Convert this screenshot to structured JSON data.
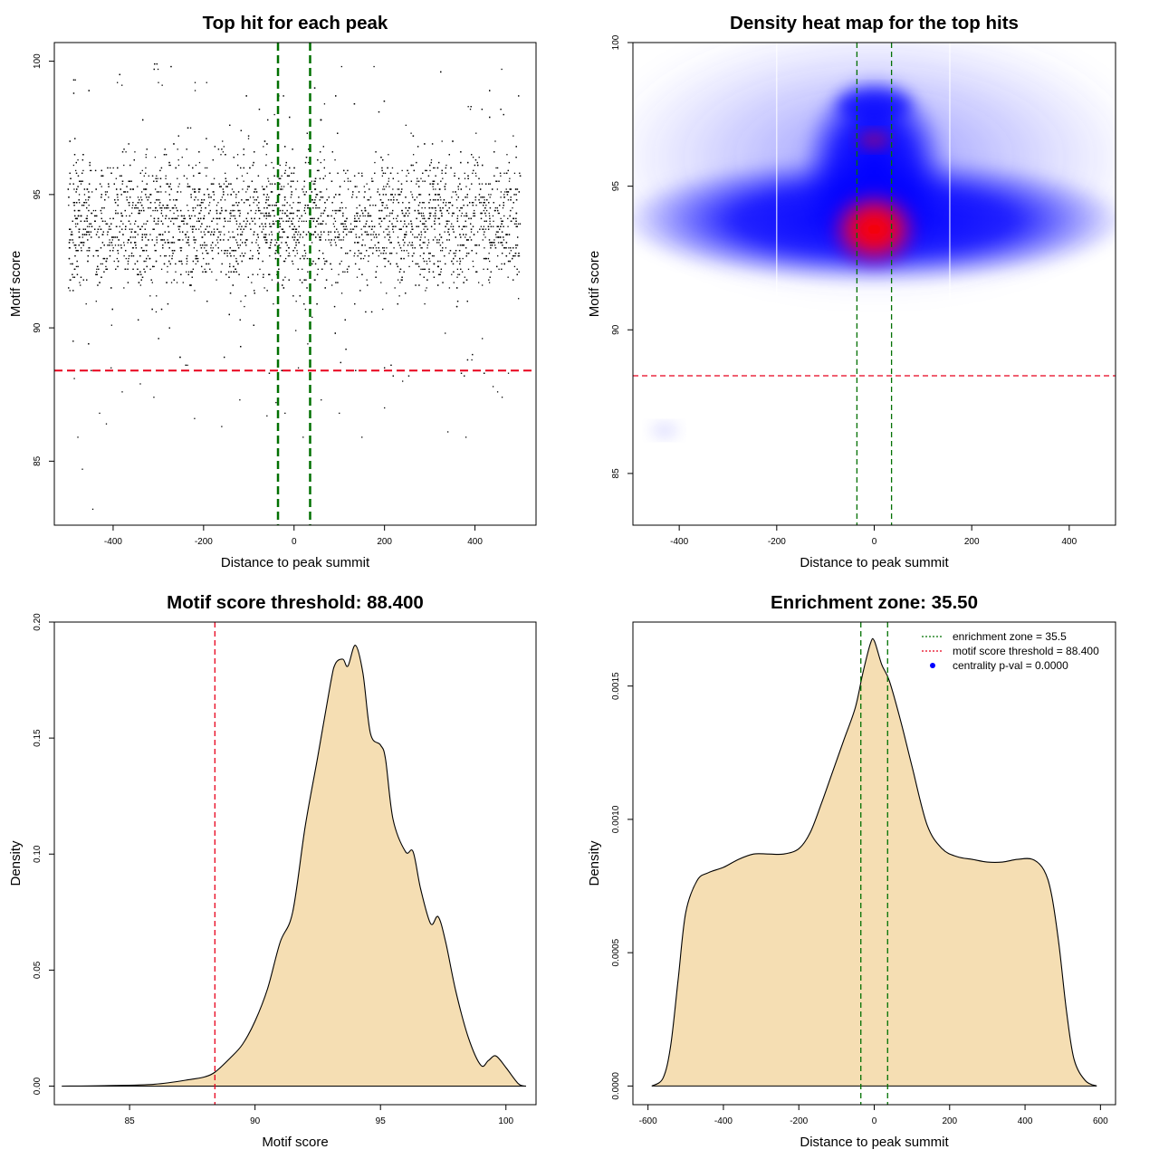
{
  "chart_data": [
    {
      "type": "scatter",
      "title": "Top hit for each peak",
      "xlabel": "Distance to peak summit",
      "ylabel": "Motif score",
      "xlim": [
        -530,
        535
      ],
      "ylim": [
        82.6,
        100.7
      ],
      "xticks": [
        "-400",
        "-200",
        "0",
        "200",
        "400"
      ],
      "yticks": [
        "85",
        "90",
        "95",
        "100"
      ],
      "threshold_y": 88.4,
      "zone_x": [
        -35.5,
        35.5
      ],
      "points_summary": {
        "x_range": [
          -500,
          500
        ],
        "y_dense_center": 94,
        "y_min": 83.2,
        "y_max": 100
      },
      "colors": {
        "points": "#000000",
        "threshold": "#e8001c",
        "zone": "#007000"
      }
    },
    {
      "type": "heatmap",
      "title": "Density heat map for the top hits",
      "xlabel": "Distance to peak summit",
      "ylabel": "Motif score",
      "xlim": [
        -495,
        495
      ],
      "ylim": [
        83.2,
        100
      ],
      "xticks": [
        "-400",
        "-200",
        "0",
        "200",
        "400"
      ],
      "yticks": [
        "85",
        "90",
        "95",
        "100"
      ],
      "threshold_y": 88.4,
      "zone_x": [
        -35.5,
        35.5
      ],
      "peak": {
        "x": 0,
        "y": 93.5
      },
      "colors": {
        "low": "#ffffff",
        "mid": "#0000ff",
        "high": "#ff0000",
        "threshold": "#e8001c",
        "zone": "#007000"
      }
    },
    {
      "type": "area",
      "title": "Motif score threshold: 88.400",
      "xlabel": "Motif score",
      "ylabel": "Density",
      "xlim": [
        82,
        101.2
      ],
      "ylim": [
        -0.008,
        0.2
      ],
      "xticks": [
        "85",
        "90",
        "95",
        "100"
      ],
      "yticks": [
        "0.00",
        "0.05",
        "0.10",
        "0.15",
        "0.20"
      ],
      "threshold_x": 88.4,
      "x": [
        82.3,
        84,
        86,
        87.5,
        88,
        88.4,
        89,
        89.5,
        90,
        90.5,
        91,
        91.5,
        92,
        92.5,
        93,
        93.2,
        93.5,
        93.7,
        94,
        94.3,
        94.6,
        95,
        95.2,
        95.5,
        96,
        96.3,
        96.6,
        97,
        97.3,
        97.6,
        98,
        98.5,
        99,
        99.3,
        99.6,
        100,
        100.5,
        100.8
      ],
      "y": [
        0.0,
        0.0002,
        0.0008,
        0.003,
        0.004,
        0.006,
        0.012,
        0.018,
        0.028,
        0.042,
        0.062,
        0.075,
        0.112,
        0.142,
        0.173,
        0.182,
        0.184,
        0.181,
        0.19,
        0.178,
        0.152,
        0.147,
        0.141,
        0.115,
        0.101,
        0.101,
        0.085,
        0.07,
        0.073,
        0.062,
        0.041,
        0.021,
        0.009,
        0.011,
        0.013,
        0.008,
        0.001,
        0.0
      ],
      "colors": {
        "fill": "#f5deb3",
        "line": "#000000",
        "threshold": "#e8001c"
      }
    },
    {
      "type": "area",
      "title": "Enrichment zone: 35.50",
      "xlabel": "Distance to peak summit",
      "ylabel": "Density",
      "xlim": [
        -640,
        640
      ],
      "ylim": [
        -7e-05,
        0.00174
      ],
      "xticks": [
        "-600",
        "-400",
        "-200",
        "0",
        "200",
        "400",
        "600"
      ],
      "yticks": [
        "0.0000",
        "0.0005",
        "0.0010",
        "0.0015"
      ],
      "zone_x": [
        -35.5,
        35.5
      ],
      "x": [
        -590,
        -560,
        -540,
        -520,
        -500,
        -470,
        -440,
        -400,
        -360,
        -320,
        -280,
        -240,
        -200,
        -170,
        -140,
        -110,
        -80,
        -50,
        -30,
        -10,
        0,
        20,
        40,
        70,
        100,
        140,
        180,
        220,
        260,
        300,
        340,
        380,
        420,
        450,
        470,
        490,
        510,
        530,
        560,
        590
      ],
      "y": [
        0.0,
        3e-05,
        0.00015,
        0.0004,
        0.00065,
        0.00077,
        0.0008,
        0.00082,
        0.00085,
        0.00087,
        0.00087,
        0.00087,
        0.00089,
        0.00095,
        0.00106,
        0.00118,
        0.0013,
        0.00142,
        0.00155,
        0.00166,
        0.00167,
        0.00158,
        0.00152,
        0.00137,
        0.0012,
        0.00098,
        0.00089,
        0.00086,
        0.00085,
        0.00084,
        0.00084,
        0.00085,
        0.00085,
        0.00081,
        0.00072,
        0.00053,
        0.00028,
        0.0001,
        2e-05,
        0.0
      ],
      "legend": {
        "placement": "top-right",
        "items": [
          "enrichment zone = 35.5",
          "motif score threshold = 88.400",
          "centrality p-val = 0.0000"
        ]
      },
      "colors": {
        "fill": "#f5deb3",
        "line": "#000000",
        "zone": "#007000",
        "legend_zone": "#007000",
        "legend_threshold": "#e8001c",
        "legend_pval": "#0000ff"
      }
    }
  ]
}
